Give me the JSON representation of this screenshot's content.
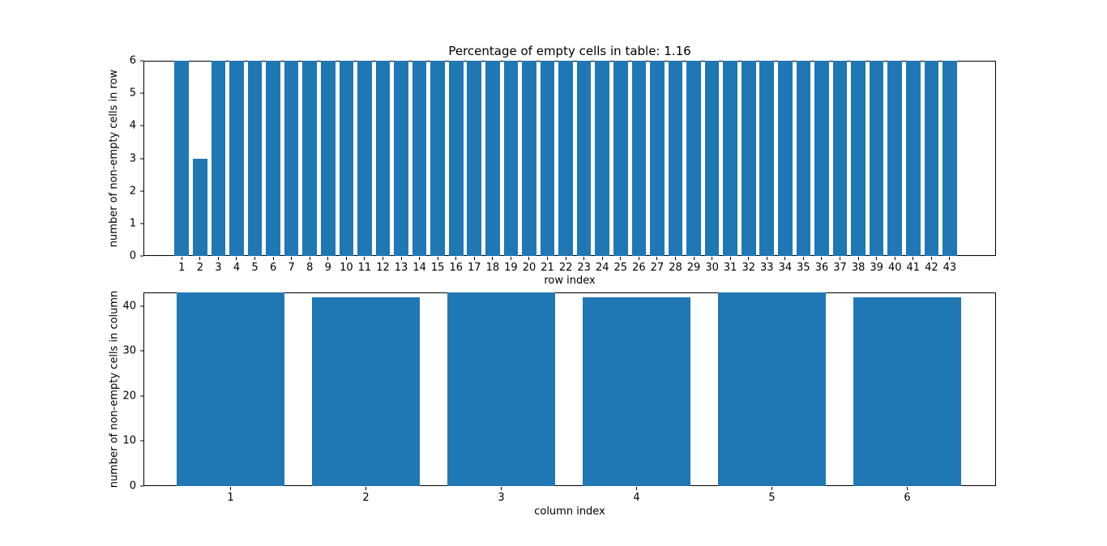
{
  "figure": {
    "background": "#ffffff",
    "bar_color": "#1f77b4",
    "text_color": "#000000"
  },
  "chart_data": [
    {
      "type": "bar",
      "title": "Percentage of empty cells in table: 1.16",
      "xlabel": "row index",
      "ylabel": "number of non-empty cells in row",
      "categories": [
        1,
        2,
        3,
        4,
        5,
        6,
        7,
        8,
        9,
        10,
        11,
        12,
        13,
        14,
        15,
        16,
        17,
        18,
        19,
        20,
        21,
        22,
        23,
        24,
        25,
        26,
        27,
        28,
        29,
        30,
        31,
        32,
        33,
        34,
        35,
        36,
        37,
        38,
        39,
        40,
        41,
        42,
        43
      ],
      "values": [
        6,
        3,
        6,
        6,
        6,
        6,
        6,
        6,
        6,
        6,
        6,
        6,
        6,
        6,
        6,
        6,
        6,
        6,
        6,
        6,
        6,
        6,
        6,
        6,
        6,
        6,
        6,
        6,
        6,
        6,
        6,
        6,
        6,
        6,
        6,
        6,
        6,
        6,
        6,
        6,
        6,
        6,
        6
      ],
      "ylim": [
        0,
        6
      ],
      "yticks": [
        0,
        1,
        2,
        3,
        4,
        5,
        6
      ],
      "grid": false,
      "legend": null
    },
    {
      "type": "bar",
      "title": "",
      "xlabel": "column index",
      "ylabel": "number of non-empty cells in column",
      "categories": [
        1,
        2,
        3,
        4,
        5,
        6
      ],
      "values": [
        43,
        42,
        43,
        42,
        43,
        42
      ],
      "ylim": [
        0,
        43
      ],
      "yticks": [
        0,
        10,
        20,
        30,
        40
      ],
      "grid": false,
      "legend": null
    }
  ]
}
